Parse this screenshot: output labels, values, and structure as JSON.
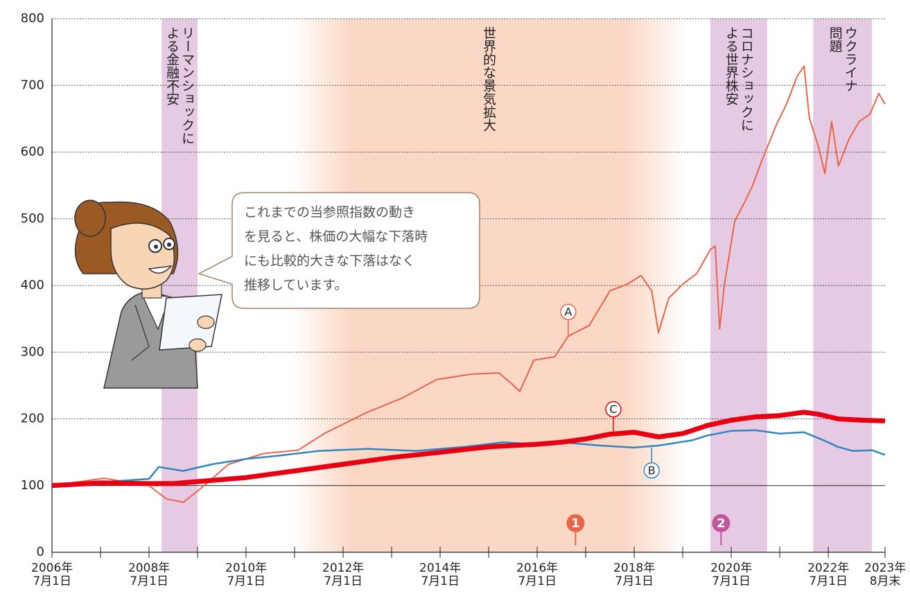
{
  "chart_data": {
    "type": "line",
    "xlim": [
      2006.5,
      2023.67
    ],
    "ylim": [
      0,
      800
    ],
    "yticks": [
      0,
      100,
      200,
      300,
      400,
      500,
      600,
      700,
      800
    ],
    "xticks": [
      {
        "value": 2006.5,
        "label": "2006年\n7月1日"
      },
      {
        "value": 2008.5,
        "label": "2008年\n7月1日"
      },
      {
        "value": 2010.5,
        "label": "2010年\n7月1日"
      },
      {
        "value": 2012.5,
        "label": "2012年\n7月1日"
      },
      {
        "value": 2014.5,
        "label": "2014年\n7月1日"
      },
      {
        "value": 2016.5,
        "label": "2016年\n7月1日"
      },
      {
        "value": 2018.5,
        "label": "2018年\n7月1日"
      },
      {
        "value": 2020.5,
        "label": "2020年\n7月1日"
      },
      {
        "value": 2022.5,
        "label": "2022年\n7月1日"
      },
      {
        "value": 2023.67,
        "label": "2023年\n8月末"
      }
    ],
    "xminorticks": [
      2007.5,
      2009.5,
      2011.5,
      2013.5,
      2015.5,
      2017.5,
      2019.5,
      2021.5
    ],
    "grid": true,
    "reference_line": 100,
    "bands": [
      {
        "label": "リーマンショックに\nよる金融不安",
        "x0": 2008.76,
        "x1": 2009.5,
        "color": "#e6c9e3"
      },
      {
        "label": "世界的な景気拡大",
        "x0": 2011.43,
        "x1": 2019.57,
        "color": "#fbd8c6"
      },
      {
        "label": "コロナショックに\nよる世界株安",
        "x0": 2020.07,
        "x1": 2021.24,
        "color": "#e6c9e3"
      },
      {
        "label": "ウクライナ\n問題",
        "x0": 2022.19,
        "x1": 2023.4,
        "color": "#e6c9e3"
      }
    ],
    "series": [
      {
        "name": "A",
        "color": "#e8654a",
        "x": [
          2006.5,
          2007.57,
          2008.5,
          2008.86,
          2009.21,
          2009.57,
          2010.14,
          2010.86,
          2011.57,
          2012.14,
          2013.0,
          2013.71,
          2014.43,
          2015.14,
          2015.71,
          2016.0,
          2016.14,
          2016.43,
          2016.86,
          2017.14,
          2017.57,
          2018.0,
          2018.36,
          2018.64,
          2018.86,
          2019.0,
          2019.21,
          2019.5,
          2019.79,
          2020.07,
          2020.17,
          2020.26,
          2020.36,
          2020.57,
          2020.79,
          2020.93,
          2021.14,
          2021.43,
          2021.64,
          2021.86,
          2022.0,
          2022.11,
          2022.29,
          2022.43,
          2022.57,
          2022.71,
          2022.93,
          2023.14,
          2023.36,
          2023.54,
          2023.67
        ],
        "values": [
          100,
          111,
          100,
          80,
          75,
          96,
          132,
          148,
          153,
          179,
          210,
          231,
          259,
          267,
          269,
          251,
          241,
          288,
          293,
          324,
          340,
          392,
          402,
          415,
          392,
          329,
          381,
          402,
          418,
          454,
          459,
          335,
          402,
          496,
          527,
          548,
          589,
          641,
          672,
          714,
          729,
          651,
          610,
          568,
          646,
          579,
          620,
          646,
          657,
          688,
          672
        ]
      },
      {
        "name": "B",
        "color": "#2e86c1",
        "x": [
          2006.5,
          2007.5,
          2008.5,
          2008.7,
          2009.2,
          2009.8,
          2010.5,
          2011.2,
          2012.0,
          2013.0,
          2014.0,
          2015.0,
          2015.8,
          2016.5,
          2017.0,
          2017.8,
          2018.5,
          2019.0,
          2019.7,
          2020.0,
          2020.5,
          2021.0,
          2021.5,
          2022.0,
          2022.4,
          2022.7,
          2023.0,
          2023.4,
          2023.67
        ],
        "values": [
          100,
          105,
          110,
          128,
          122,
          132,
          140,
          145,
          152,
          155,
          152,
          158,
          165,
          162,
          165,
          160,
          157,
          160,
          168,
          175,
          182,
          183,
          178,
          180,
          168,
          158,
          152,
          153,
          146
        ]
      },
      {
        "name": "C",
        "color": "#e60012",
        "x": [
          2006.5,
          2007.5,
          2008.5,
          2009.0,
          2009.5,
          2010.5,
          2011.5,
          2012.5,
          2013.5,
          2014.5,
          2015.5,
          2016.5,
          2017.0,
          2017.5,
          2018.0,
          2018.5,
          2019.0,
          2019.5,
          2020.0,
          2020.5,
          2021.0,
          2021.5,
          2022.0,
          2022.3,
          2022.7,
          2023.2,
          2023.67
        ],
        "values": [
          100,
          104,
          103,
          103,
          106,
          112,
          122,
          132,
          142,
          150,
          158,
          162,
          165,
          170,
          177,
          180,
          173,
          178,
          190,
          198,
          203,
          205,
          210,
          207,
          200,
          198,
          197
        ]
      }
    ],
    "annotations": [
      {
        "label": "A",
        "x": 2017.14,
        "y": 324,
        "color": "#e8654a"
      },
      {
        "label": "C",
        "x": 2018.07,
        "y": 178,
        "color": "#e60012"
      },
      {
        "label": "B",
        "x": 2018.86,
        "y": 157,
        "color": "#2e86c1"
      }
    ],
    "events": [
      {
        "label": "1",
        "x": 2017.29,
        "color": "#e8654a"
      },
      {
        "label": "2",
        "x": 2020.29,
        "color": "#c2569b"
      }
    ],
    "bubble": [
      "これまでの当参照指数の動き",
      "を見ると、株価の大幅な下落時",
      "にも比較的大きな下落はなく",
      "推移しています。"
    ]
  }
}
